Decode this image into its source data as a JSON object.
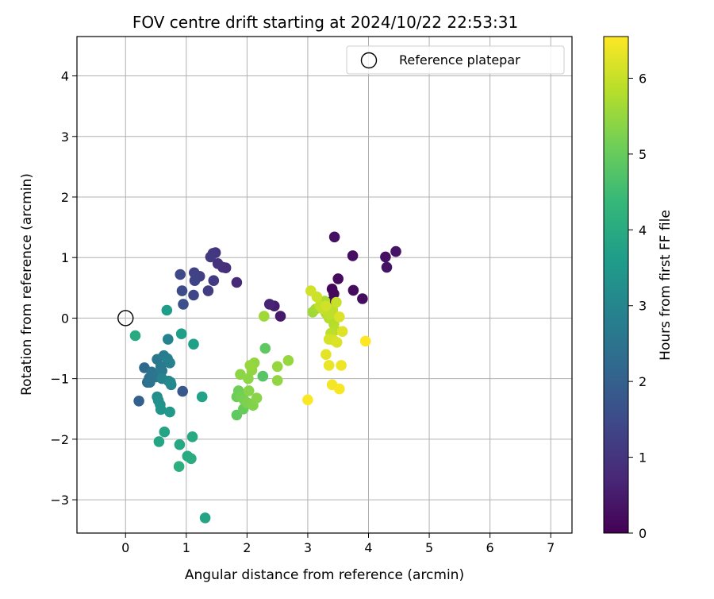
{
  "chart_data": {
    "type": "scatter",
    "title": "FOV centre drift starting at 2024/10/22 22:53:31",
    "xlabel": "Angular distance from reference (arcmin)",
    "ylabel": "Rotation from reference (arcmin)",
    "xlim": [
      -0.8,
      7.35
    ],
    "ylim": [
      -3.55,
      4.65
    ],
    "x_ticks": [
      0,
      1,
      2,
      3,
      4,
      5,
      6,
      7
    ],
    "y_ticks": [
      -3,
      -2,
      -1,
      0,
      1,
      2,
      3,
      4
    ],
    "grid": true,
    "legend": {
      "location": "top-right",
      "entries": [
        "Reference platepar"
      ]
    },
    "reference_point": {
      "label": "Reference platepar",
      "x": 0.0,
      "y": 0.0
    },
    "colorbar": {
      "label": "Hours from first FF file",
      "colormap": "viridis",
      "range": [
        0,
        6.55
      ],
      "ticks": [
        0,
        1,
        2,
        3,
        4,
        5,
        6
      ]
    },
    "series": [
      {
        "points": [
          [
            3.4,
            0.48,
            0.1
          ],
          [
            3.43,
            0.4,
            0.12
          ],
          [
            3.42,
            0.3,
            0.15
          ],
          [
            3.5,
            0.65,
            0.18
          ],
          [
            3.75,
            0.46,
            0.2
          ],
          [
            3.9,
            0.32,
            0.22
          ],
          [
            3.74,
            1.03,
            0.25
          ],
          [
            3.44,
            1.34,
            0.28
          ],
          [
            4.28,
            1.01,
            0.3
          ],
          [
            4.3,
            0.84,
            0.33
          ],
          [
            4.45,
            1.1,
            0.35
          ],
          [
            2.55,
            0.03,
            0.45
          ],
          [
            2.45,
            0.2,
            0.55
          ],
          [
            2.37,
            0.23,
            0.65
          ],
          [
            1.83,
            0.59,
            0.75
          ],
          [
            1.65,
            0.83,
            0.85
          ],
          [
            1.6,
            0.84,
            0.9
          ],
          [
            1.52,
            0.9,
            0.95
          ],
          [
            1.48,
            1.08,
            1.0
          ],
          [
            1.44,
            1.07,
            1.05
          ],
          [
            1.4,
            1.01,
            1.1
          ],
          [
            1.45,
            0.62,
            1.15
          ],
          [
            1.36,
            0.45,
            1.2
          ],
          [
            1.22,
            0.69,
            1.25
          ],
          [
            1.13,
            0.75,
            1.3
          ],
          [
            1.14,
            0.62,
            1.35
          ],
          [
            1.12,
            0.38,
            1.4
          ],
          [
            0.9,
            0.72,
            1.45
          ],
          [
            0.93,
            0.45,
            1.5
          ],
          [
            0.95,
            0.23,
            1.6
          ],
          [
            0.94,
            -1.21,
            1.8
          ],
          [
            0.22,
            -1.37,
            2.0
          ],
          [
            0.31,
            -0.82,
            2.2
          ],
          [
            0.36,
            -1.06,
            2.3
          ],
          [
            0.39,
            -0.99,
            2.4
          ],
          [
            0.4,
            -1.06,
            2.45
          ],
          [
            0.43,
            -0.89,
            2.5
          ],
          [
            0.5,
            -0.97,
            2.55
          ],
          [
            0.52,
            -0.68,
            2.6
          ],
          [
            0.58,
            -0.8,
            2.65
          ],
          [
            0.6,
            -0.87,
            2.7
          ],
          [
            0.63,
            -0.62,
            2.75
          ],
          [
            0.69,
            -0.67,
            2.8
          ],
          [
            0.73,
            -0.74,
            2.85
          ],
          [
            0.7,
            -0.35,
            2.9
          ],
          [
            0.6,
            -1.0,
            2.95
          ],
          [
            0.71,
            -1.04,
            3.0
          ],
          [
            0.75,
            -1.1,
            3.05
          ],
          [
            0.74,
            -1.06,
            3.1
          ],
          [
            0.52,
            -1.3,
            3.2
          ],
          [
            0.54,
            -1.36,
            3.3
          ],
          [
            0.57,
            -1.43,
            3.35
          ],
          [
            0.58,
            -1.51,
            3.4
          ],
          [
            0.73,
            -1.55,
            3.5
          ],
          [
            0.68,
            0.13,
            3.6
          ],
          [
            0.92,
            -0.26,
            3.65
          ],
          [
            1.12,
            -0.43,
            3.7
          ],
          [
            1.26,
            -1.3,
            3.75
          ],
          [
            0.64,
            -1.88,
            3.8
          ],
          [
            0.55,
            -2.04,
            3.85
          ],
          [
            0.89,
            -2.09,
            3.9
          ],
          [
            1.1,
            -1.96,
            3.95
          ],
          [
            1.02,
            -2.28,
            4.0
          ],
          [
            1.08,
            -2.32,
            4.05
          ],
          [
            0.88,
            -2.45,
            4.1
          ],
          [
            1.31,
            -3.3,
            3.8
          ],
          [
            0.16,
            -0.29,
            4.0
          ],
          [
            2.26,
            -0.96,
            4.8
          ],
          [
            2.3,
            -0.5,
            4.9
          ],
          [
            1.83,
            -1.6,
            4.9
          ],
          [
            1.94,
            -1.5,
            5.0
          ],
          [
            2.03,
            -1.41,
            5.0
          ],
          [
            1.83,
            -1.3,
            5.05
          ],
          [
            1.86,
            -1.2,
            5.1
          ],
          [
            1.9,
            -1.3,
            5.15
          ],
          [
            1.95,
            -1.35,
            5.2
          ],
          [
            2.0,
            -1.4,
            5.25
          ],
          [
            2.1,
            -1.44,
            5.3
          ],
          [
            2.16,
            -1.32,
            5.35
          ],
          [
            2.03,
            -1.2,
            5.35
          ],
          [
            1.89,
            -0.93,
            5.4
          ],
          [
            2.02,
            -1.0,
            5.4
          ],
          [
            2.08,
            -0.86,
            5.45
          ],
          [
            2.12,
            -0.74,
            5.45
          ],
          [
            2.05,
            -0.78,
            5.5
          ],
          [
            2.5,
            -0.8,
            5.5
          ],
          [
            2.68,
            -0.7,
            5.5
          ],
          [
            2.5,
            -1.03,
            5.45
          ],
          [
            2.28,
            0.03,
            5.6
          ],
          [
            3.08,
            0.1,
            5.6
          ],
          [
            3.13,
            0.15,
            5.65
          ],
          [
            3.22,
            0.25,
            5.7
          ],
          [
            3.28,
            0.28,
            5.72
          ],
          [
            3.3,
            0.08,
            5.75
          ],
          [
            3.35,
            0.0,
            5.78
          ],
          [
            3.4,
            -0.02,
            5.8
          ],
          [
            3.43,
            -0.1,
            5.82
          ],
          [
            3.45,
            -0.2,
            5.85
          ],
          [
            3.38,
            -0.25,
            5.88
          ],
          [
            3.41,
            0.14,
            5.9
          ],
          [
            3.35,
            0.06,
            5.92
          ],
          [
            3.2,
            0.2,
            5.95
          ],
          [
            3.25,
            0.15,
            5.97
          ],
          [
            3.47,
            0.26,
            6.0
          ],
          [
            3.15,
            0.35,
            6.05
          ],
          [
            3.05,
            0.45,
            6.1
          ],
          [
            3.3,
            0.2,
            6.1
          ],
          [
            3.35,
            -0.35,
            6.15
          ],
          [
            3.42,
            -0.36,
            6.15
          ],
          [
            3.48,
            -0.4,
            6.2
          ],
          [
            3.52,
            0.02,
            6.2
          ],
          [
            3.57,
            -0.22,
            6.25
          ],
          [
            3.3,
            -0.6,
            6.3
          ],
          [
            3.35,
            -0.78,
            6.35
          ],
          [
            3.55,
            -0.78,
            6.4
          ],
          [
            3.4,
            -1.1,
            6.45
          ],
          [
            3.52,
            -1.17,
            6.5
          ],
          [
            3.0,
            -1.35,
            6.52
          ],
          [
            3.95,
            -0.38,
            6.55
          ]
        ]
      }
    ]
  }
}
